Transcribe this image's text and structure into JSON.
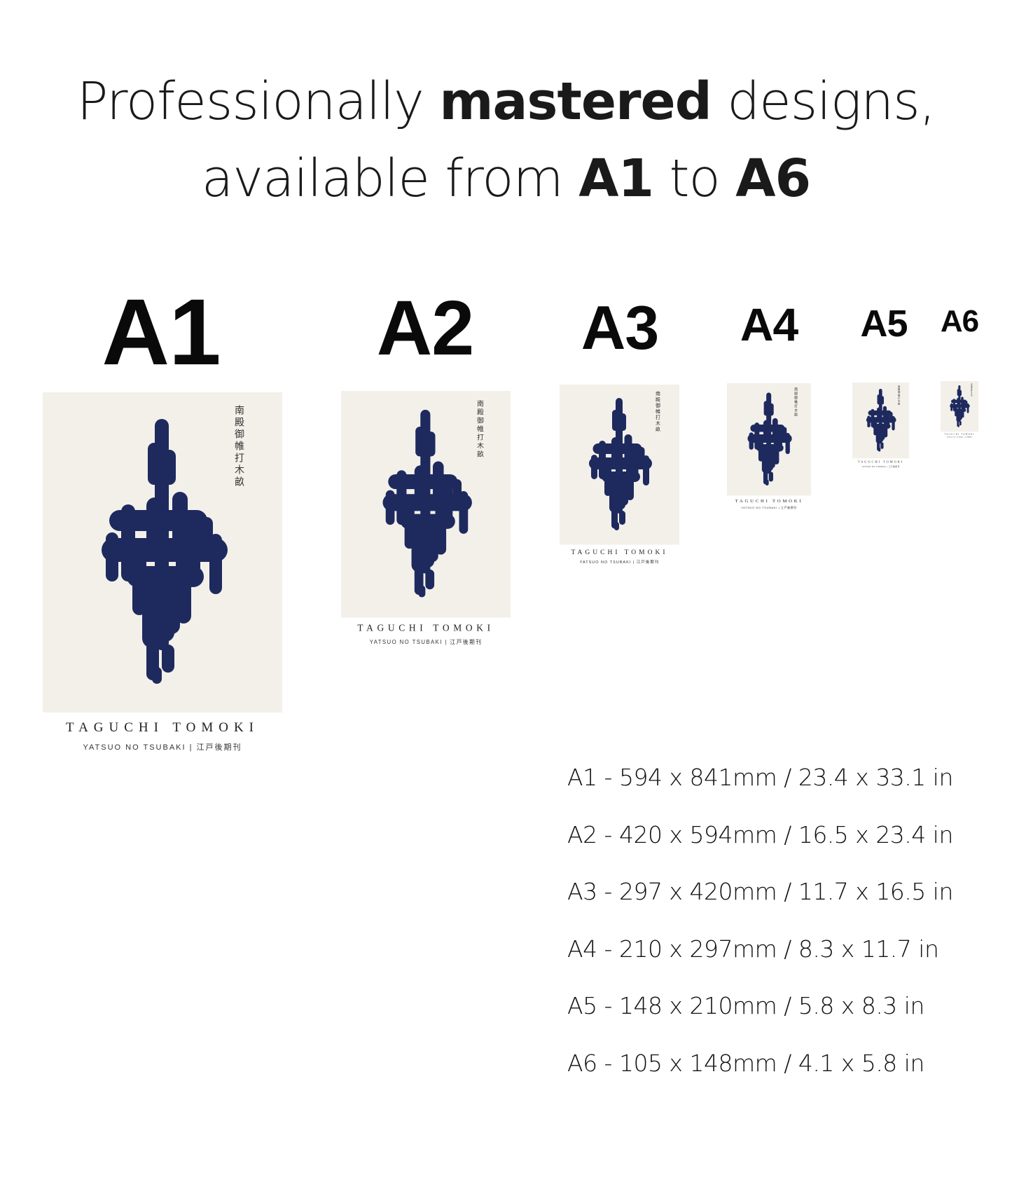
{
  "headline": {
    "line1_pre": "Professionally ",
    "line1_bold": "mastered",
    "line1_post": " designs,",
    "line2_pre": "available from ",
    "line2_bold1": "A1",
    "line2_mid": " to ",
    "line2_bold2": "A6"
  },
  "sizes": [
    {
      "label": "A1",
      "spec": "A1 - 594 x 841mm  /  23.4 x 33.1 in"
    },
    {
      "label": "A2",
      "spec": "A2  - 420 x 594mm / 16.5 x 23.4 in"
    },
    {
      "label": "A3",
      "spec": "A3 - 297 x 420mm  / 11.7 x 16.5 in"
    },
    {
      "label": "A4",
      "spec": "A4  - 210 x 297mm  / 8.3 x 11.7 in"
    },
    {
      "label": "A5",
      "spec": "A5 - 148 x 210mm / 5.8 x 8.3 in"
    },
    {
      "label": "A6",
      "spec": "A6 - 105 x 148mm / 4.1 x 5.8 in"
    }
  ],
  "poster": {
    "artist": "TAGUCHI TOMOKI",
    "subtitle": "YATSUO NO TSUBAKI  |  江戸後期刊",
    "artwork_inscription": "南殿御帷打木畝",
    "ink_color": "#1e2a5e",
    "paper_color": "#f3f0ea"
  }
}
